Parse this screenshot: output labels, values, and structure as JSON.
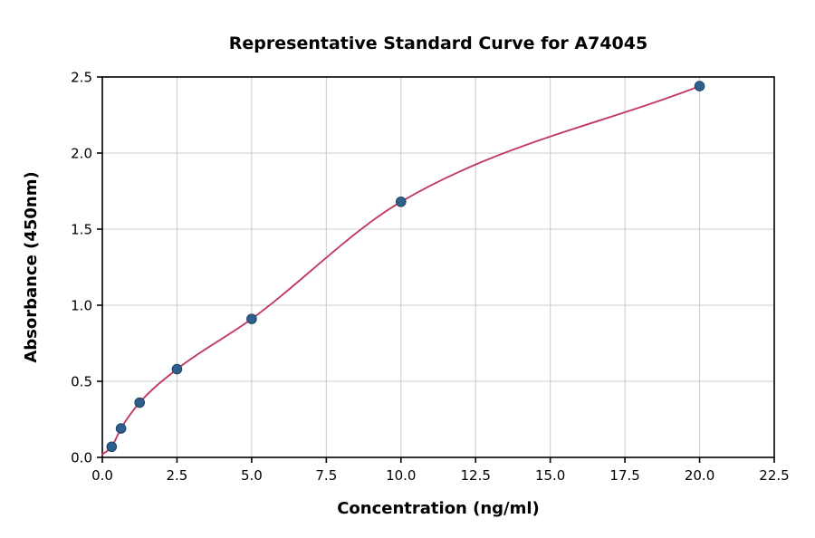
{
  "chart_data": {
    "type": "scatter",
    "title": "Representative Standard Curve for A74045",
    "xlabel": "Concentration (ng/ml)",
    "ylabel": "Absorbance (450nm)",
    "xlim": [
      0,
      22.5
    ],
    "ylim": [
      0,
      2.5
    ],
    "x_ticks": [
      0,
      2.5,
      5,
      7.5,
      10,
      12.5,
      15,
      17.5,
      20,
      22.5
    ],
    "x_tick_labels": [
      "0.0",
      "2.5",
      "5.0",
      "7.5",
      "10.0",
      "12.5",
      "15.0",
      "17.5",
      "20.0",
      "22.5"
    ],
    "y_ticks": [
      0,
      0.5,
      1,
      1.5,
      2,
      2.5
    ],
    "y_tick_labels": [
      "0.0",
      "0.5",
      "1.0",
      "1.5",
      "2.0",
      "2.5"
    ],
    "grid": true,
    "legend": "none",
    "series": [
      {
        "name": "standard-points",
        "type": "scatter",
        "x": [
          0.313,
          0.625,
          1.25,
          2.5,
          5,
          10,
          20
        ],
        "y": [
          0.07,
          0.19,
          0.36,
          0.58,
          0.91,
          1.68,
          2.44
        ]
      },
      {
        "name": "fit-curve",
        "type": "line",
        "curve_start": [
          0,
          0.02
        ],
        "through_scatter_points": true
      }
    ],
    "colors": {
      "points": "#2e5f8c",
      "points_edge": "#1f4365",
      "curve": "#c23b60",
      "grid": "#cccccc",
      "axis": "#000000",
      "background": "#ffffff"
    }
  }
}
